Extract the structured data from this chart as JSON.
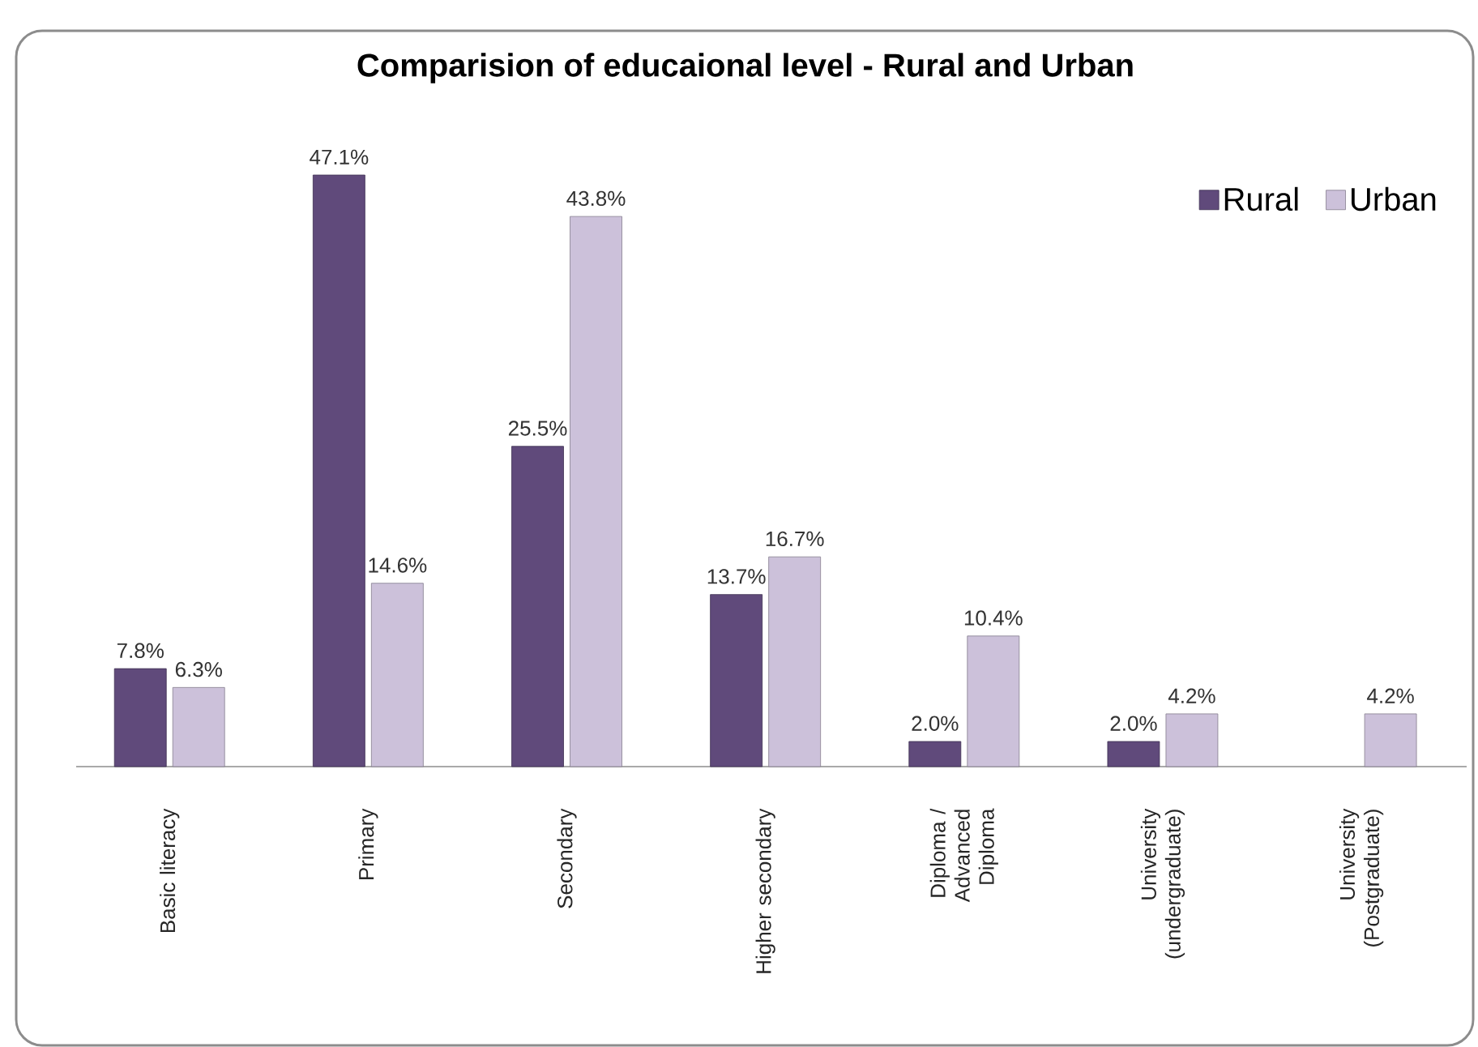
{
  "chart_data": {
    "type": "bar",
    "title": "Comparision of educaional level - Rural and Urban",
    "categories": [
      "Basic literacy",
      "Primary",
      "Secondary",
      "Higher secondary",
      "Diploma / Advanced Diploma",
      "University (undergraduate)",
      "University (Postgraduate)"
    ],
    "series": [
      {
        "name": "Rural",
        "color": "#604a7b",
        "values": [
          7.8,
          47.1,
          25.5,
          13.7,
          2.0,
          2.0,
          null
        ],
        "value_labels": [
          "7.8%",
          "47.1%",
          "25.5%",
          "13.7%",
          "2.0%",
          "2.0%",
          null
        ]
      },
      {
        "name": "Urban",
        "color": "#ccc1da",
        "values": [
          6.3,
          14.6,
          43.8,
          16.7,
          10.4,
          4.2,
          4.2
        ],
        "value_labels": [
          "6.3%",
          "14.6%",
          "43.8%",
          "16.7%",
          "10.4%",
          "4.2%",
          "4.2%"
        ]
      }
    ],
    "legend": "top right",
    "tick_labels": "x"
  }
}
